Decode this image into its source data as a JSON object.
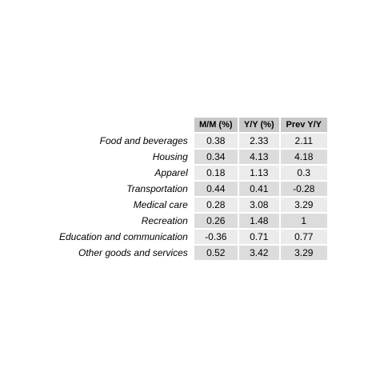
{
  "chart_data": {
    "type": "table",
    "columns": [
      "M/M (%)",
      "Y/Y (%)",
      "Prev Y/Y"
    ],
    "rows": [
      {
        "label": "Food and beverages",
        "values": [
          "0.38",
          "2.33",
          "2.11"
        ]
      },
      {
        "label": "Housing",
        "values": [
          "0.34",
          "4.13",
          "4.18"
        ]
      },
      {
        "label": "Apparel",
        "values": [
          "0.18",
          "1.13",
          "0.3"
        ]
      },
      {
        "label": "Transportation",
        "values": [
          "0.44",
          "0.41",
          "-0.28"
        ]
      },
      {
        "label": "Medical care",
        "values": [
          "0.28",
          "3.08",
          "3.29"
        ]
      },
      {
        "label": "Recreation",
        "values": [
          "0.26",
          "1.48",
          "1"
        ]
      },
      {
        "label": "Education and communication",
        "values": [
          "-0.36",
          "0.71",
          "0.77"
        ]
      },
      {
        "label": "Other goods and services",
        "values": [
          "0.52",
          "3.42",
          "3.29"
        ]
      }
    ]
  }
}
